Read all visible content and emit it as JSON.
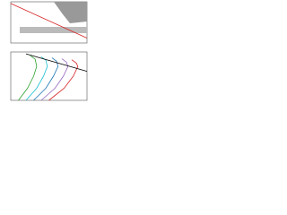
{
  "chart_data": [
    {
      "type": "line",
      "xlim": [
        0,
        10
      ],
      "ylim": [
        0,
        10
      ],
      "series": [
        {
          "color": "#d62728",
          "x": [
            0,
            10
          ],
          "values": [
            9.6,
            1.2
          ]
        }
      ]
    },
    {
      "type": "line",
      "xlim": [
        0,
        10
      ],
      "ylim": [
        0,
        10
      ],
      "series": [
        {
          "color": "#2ca02c",
          "x": [
            1.0,
            2.2,
            3.0,
            3.4,
            3.2,
            2.6
          ],
          "values": [
            0,
            2.5,
            5,
            7,
            8.5,
            9.2
          ]
        },
        {
          "color": "#17becf",
          "x": [
            2.0,
            3.4,
            4.3,
            4.8,
            4.6,
            4.0
          ],
          "values": [
            0,
            2.5,
            5,
            7,
            8.3,
            9.0
          ]
        },
        {
          "color": "#1f77b4",
          "x": [
            3.0,
            4.6,
            5.6,
            6.2,
            6.0,
            5.4
          ],
          "values": [
            0,
            2.5,
            5,
            7,
            8.1,
            8.8
          ]
        },
        {
          "color": "#9467bd",
          "x": [
            4.0,
            5.8,
            6.9,
            7.5,
            7.3,
            6.7
          ],
          "values": [
            0,
            2.5,
            5,
            7,
            7.9,
            8.6
          ]
        },
        {
          "color": "#d62728",
          "x": [
            5.0,
            7.0,
            8.2,
            8.8,
            8.6,
            8.0
          ],
          "values": [
            0,
            2.5,
            5,
            7,
            7.7,
            8.4
          ]
        },
        {
          "color": "#000000",
          "x": [
            2,
            10
          ],
          "values": [
            9.6,
            6.0
          ]
        }
      ]
    }
  ]
}
